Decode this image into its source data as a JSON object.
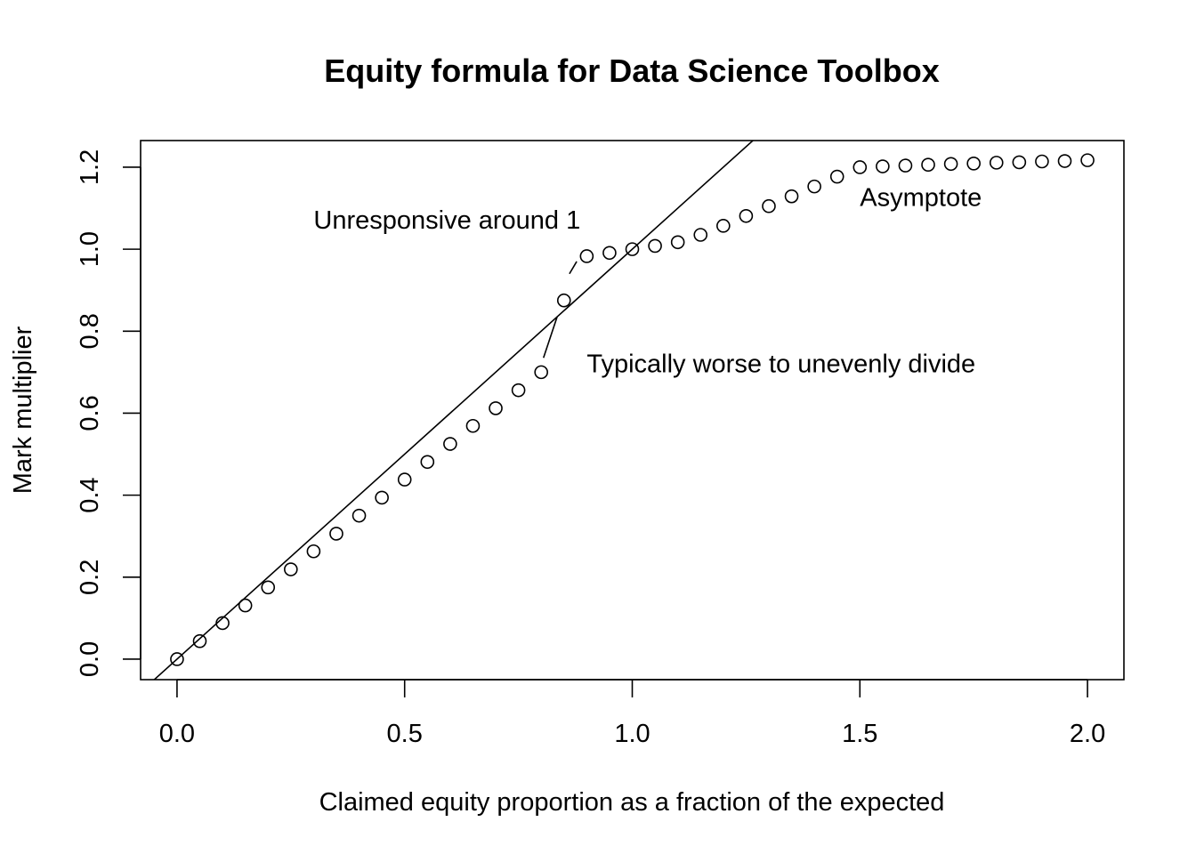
{
  "chart_data": {
    "type": "scatter",
    "title": "Equity formula for Data Science Toolbox",
    "xlabel": "Claimed equity proportion as a fraction of the expected",
    "ylabel": "Mark multiplier",
    "xlim": [
      -0.08,
      2.08
    ],
    "ylim": [
      -0.05,
      1.265
    ],
    "x_ticks": [
      "0.0",
      "0.5",
      "1.0",
      "1.5",
      "2.0"
    ],
    "x_tick_values": [
      0,
      0.5,
      1,
      1.5,
      2
    ],
    "y_ticks": [
      "0.0",
      "0.2",
      "0.4",
      "0.6",
      "0.8",
      "1.0",
      "1.2"
    ],
    "y_tick_values": [
      0,
      0.2,
      0.4,
      0.6,
      0.8,
      1.0,
      1.2
    ],
    "grid": false,
    "series": [
      {
        "marker": "open-circle",
        "x": [
          0,
          0.05,
          0.1,
          0.15,
          0.2,
          0.25,
          0.3,
          0.35,
          0.4,
          0.45,
          0.5,
          0.55,
          0.6,
          0.65,
          0.7,
          0.75,
          0.8,
          0.85,
          0.9,
          0.95,
          1.0,
          1.05,
          1.1,
          1.15,
          1.2,
          1.25,
          1.3,
          1.35,
          1.4,
          1.45,
          1.5,
          1.55,
          1.6,
          1.65,
          1.7,
          1.75,
          1.8,
          1.85,
          1.9,
          1.95,
          2.0
        ],
        "y": [
          0,
          0.044,
          0.088,
          0.131,
          0.175,
          0.219,
          0.263,
          0.306,
          0.35,
          0.394,
          0.438,
          0.481,
          0.525,
          0.569,
          0.612,
          0.656,
          0.7,
          0.875,
          0.983,
          0.991,
          1.0,
          1.008,
          1.017,
          1.035,
          1.057,
          1.081,
          1.105,
          1.129,
          1.153,
          1.177,
          1.2,
          1.202,
          1.204,
          1.206,
          1.208,
          1.209,
          1.211,
          1.212,
          1.214,
          1.215,
          1.217
        ]
      }
    ],
    "reference_line": {
      "description_slope": 1,
      "intercept": 0
    },
    "annotations": [
      {
        "text": "Unresponsive around 1",
        "x": 0.3,
        "y": 1.05
      },
      {
        "text": "Typically worse to unevenly divide",
        "x": 0.9,
        "y": 0.7
      },
      {
        "text": "Asymptote",
        "x": 1.5,
        "y": 1.105
      }
    ],
    "annotation_segments": [
      {
        "from": [
          0.805,
          0.735
        ],
        "to": [
          0.835,
          0.835
        ]
      },
      {
        "from": [
          0.862,
          0.94
        ],
        "to": [
          0.878,
          0.97
        ]
      }
    ]
  }
}
